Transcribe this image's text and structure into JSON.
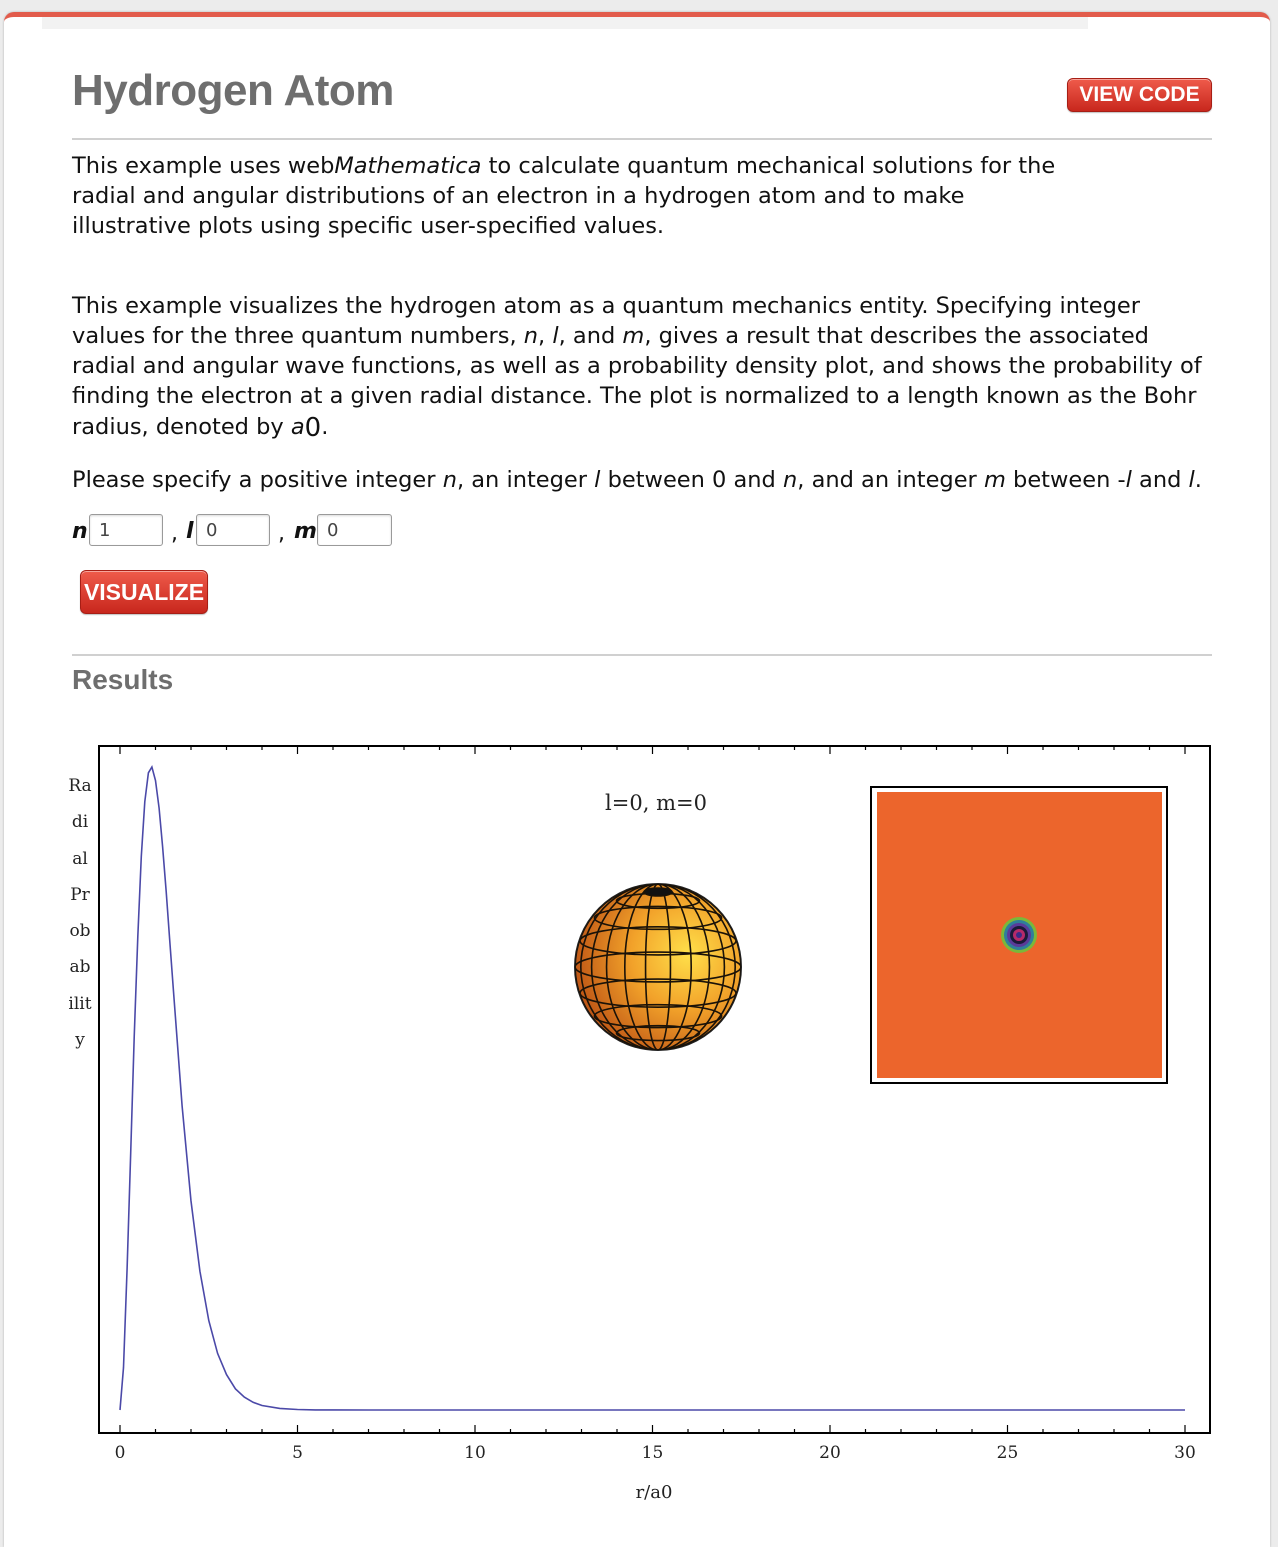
{
  "page": {
    "title": "Hydrogen Atom",
    "view_code_label": "VIEW CODE",
    "intro": {
      "before": "This example uses web",
      "emph": "Mathematica",
      "after": " to calculate quantum mechanical solutions for the radial and angular distributions of an electron in a hydrogen atom and to make illustrative plots using specific user-specified values."
    },
    "description": {
      "t1": "This example visualizes the hydrogen atom as a quantum mechanics entity. Specifying integer values for the three quantum numbers, ",
      "n": "n",
      "t2": ", ",
      "l": "l",
      "t3": ", and ",
      "m": "m",
      "t4": ", gives a result that describes the associated radial and angular wave functions, as well as a probability density plot, and shows the probability of finding the electron at a given radial distance. The plot is normalized to a length known as the Bohr radius, denoted by ",
      "a": "a",
      "sub": "0",
      "t5": "."
    },
    "instruction": {
      "t1": "Please specify a positive integer ",
      "n": "n",
      "t2": ", an integer ",
      "l": "l",
      "t3": " between 0 and ",
      "n2": "n",
      "t4": ", and an integer ",
      "m": "m",
      "t5": " between -",
      "l2": "l",
      "t6": " and ",
      "l3": "l",
      "t7": "."
    },
    "form": {
      "n_label": "n",
      "l_label": "l",
      "m_label": "m",
      "comma": ",",
      "n_value": "1",
      "l_value": "0",
      "m_value": "0"
    },
    "visualize_label": "VISUALIZE",
    "results_heading": "Results"
  },
  "chart_data": {
    "type": "line",
    "title": "l=0, m=0",
    "xlabel": "r/a0",
    "ylabel": "Radial Probability",
    "xlim": [
      0,
      30
    ],
    "x_ticks": [
      0,
      5,
      10,
      15,
      20,
      25,
      30
    ],
    "series": [
      {
        "x": [
          0,
          0.1,
          0.2,
          0.3,
          0.4,
          0.5,
          0.6,
          0.7,
          0.8,
          0.9,
          1.0,
          1.1,
          1.2,
          1.3,
          1.4,
          1.5,
          1.75,
          2.0,
          2.25,
          2.5,
          2.75,
          3.0,
          3.25,
          3.5,
          3.75,
          4.0,
          4.5,
          5.0,
          5.5,
          6.0,
          7.0,
          8.0,
          10,
          15,
          20,
          25,
          30
        ],
        "y": [
          0,
          0.066,
          0.22,
          0.4,
          0.58,
          0.736,
          0.861,
          0.946,
          0.991,
          1.0,
          0.979,
          0.936,
          0.876,
          0.806,
          0.731,
          0.655,
          0.473,
          0.325,
          0.216,
          0.139,
          0.088,
          0.055,
          0.033,
          0.02,
          0.012,
          0.007,
          0.0025,
          0.0008,
          0.0002,
          0.0001,
          0,
          0,
          0,
          0,
          0,
          0,
          0
        ],
        "color": "#4b49a8"
      }
    ],
    "insets": {
      "sphere_color": "#e8831e",
      "density_background": "#ec652c"
    }
  }
}
